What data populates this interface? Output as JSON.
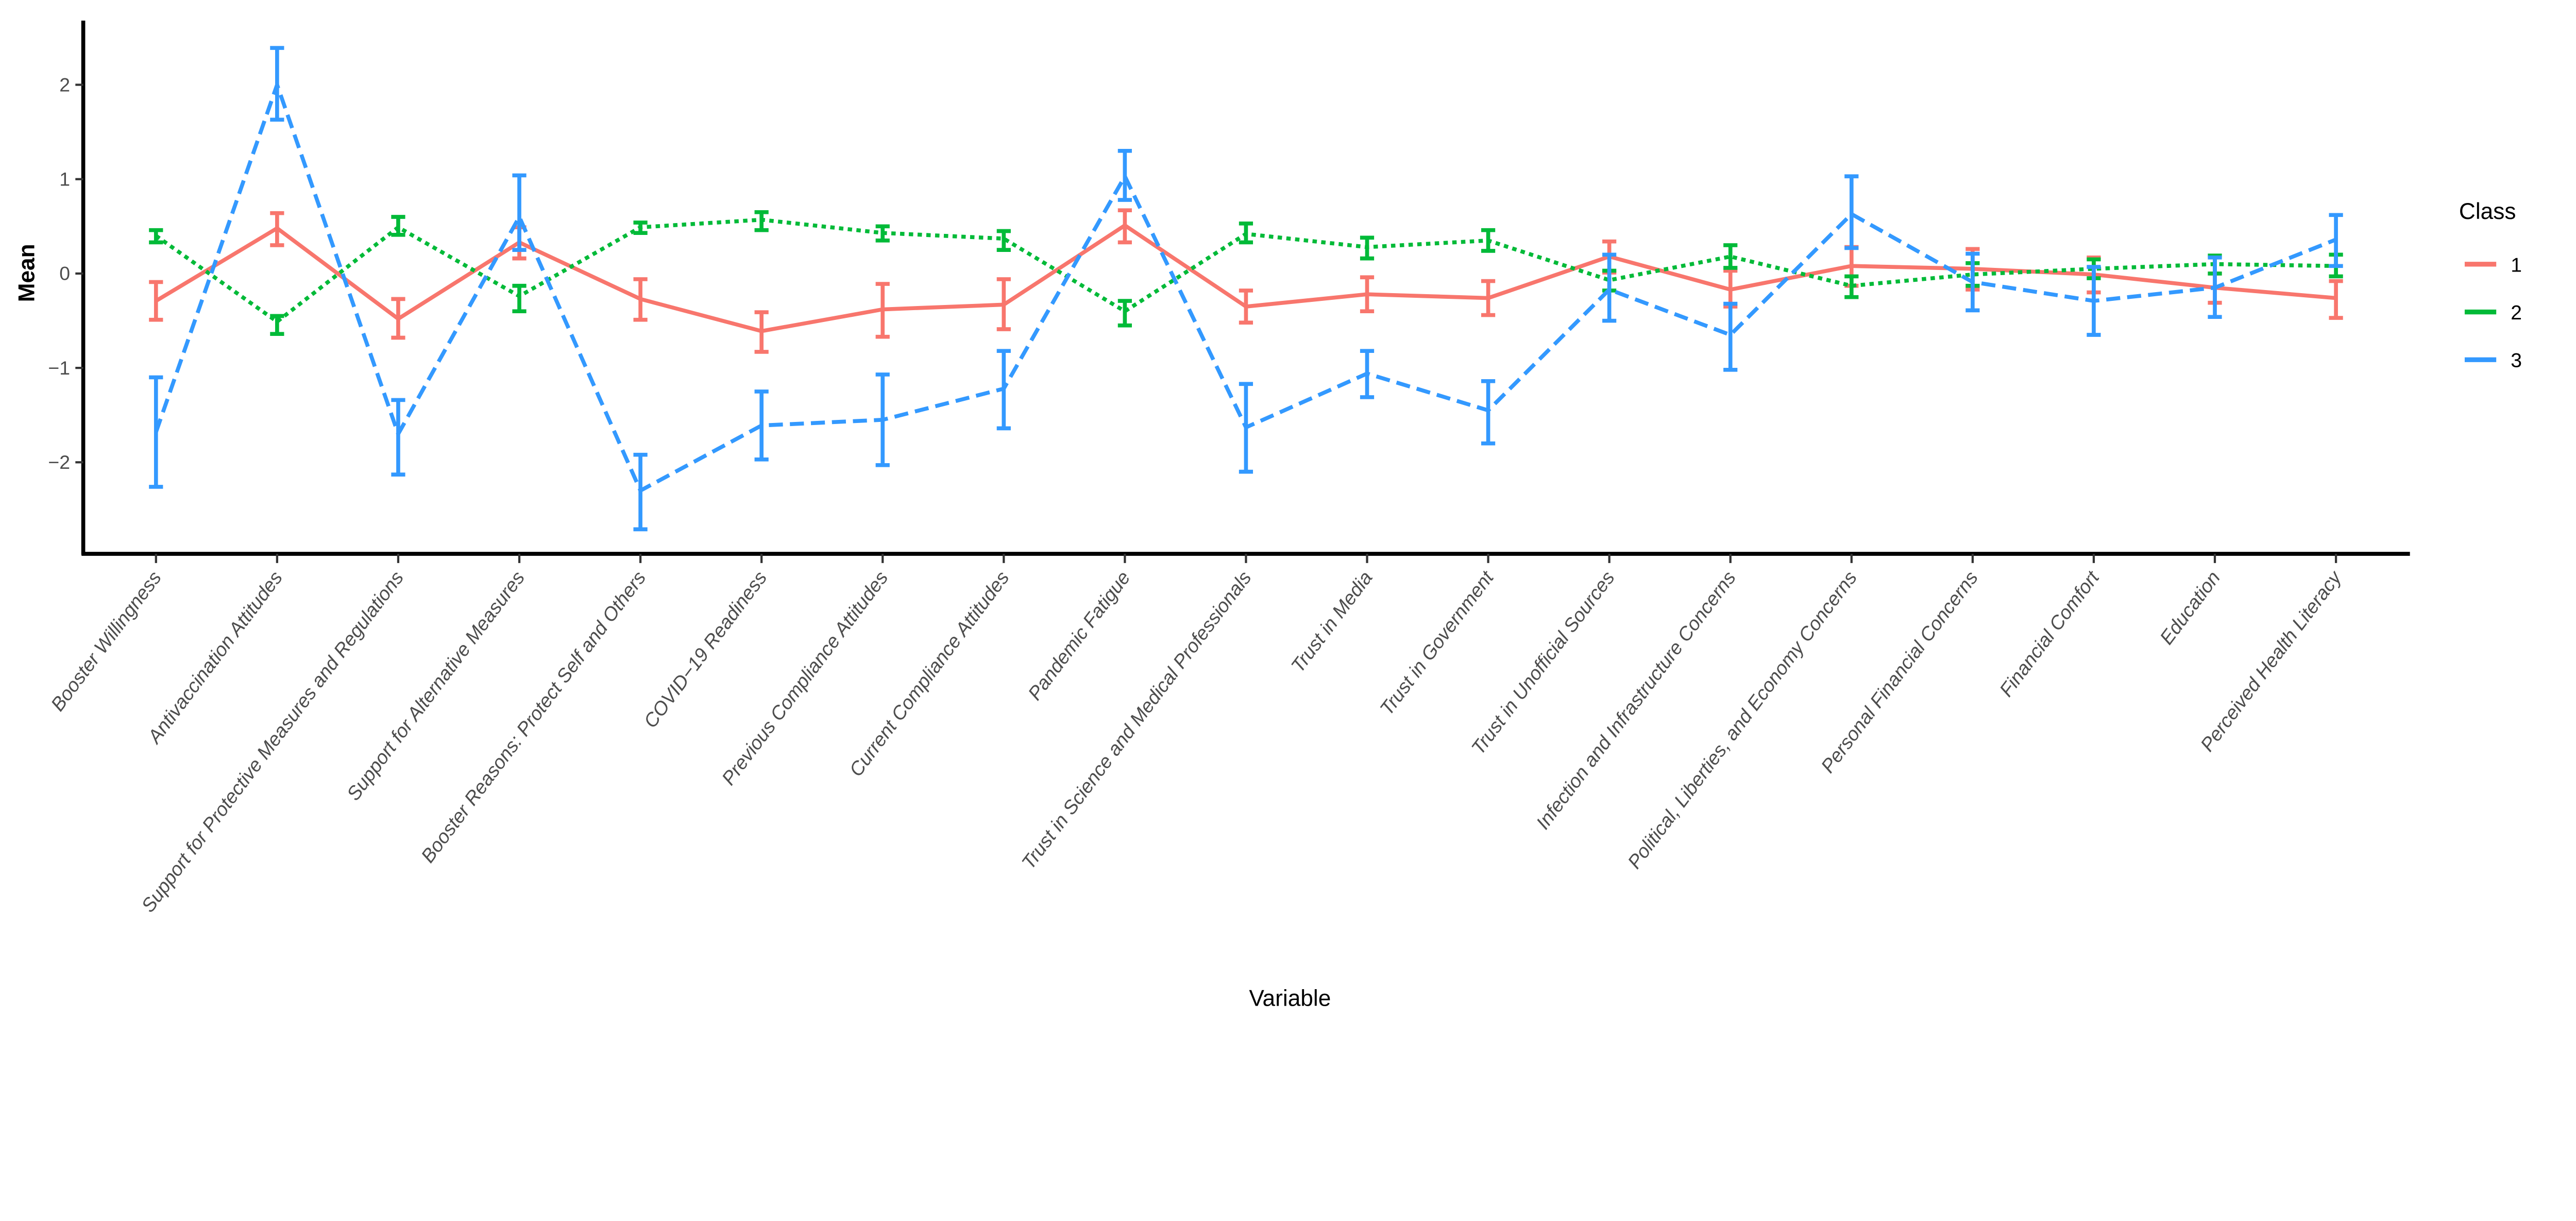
{
  "chart_data": {
    "type": "line",
    "xlabel": "Variable",
    "ylabel": "Mean",
    "ylim": [
      -2.97,
      2.68
    ],
    "yticks": [
      -2,
      -1,
      0,
      1,
      2
    ],
    "grid": false,
    "legend": {
      "title": "Class",
      "position": "right"
    },
    "categories": [
      "Booster Willingness",
      "Antivaccination Attitudes",
      "Support for Protective Measures and Regulations",
      "Support for Alternative Measures",
      "Booster Reasons: Protect Self and Others",
      "COVID−19 Readiness",
      "Previous Compliance Attitudes",
      "Current Compliance Attitudes",
      "Pandemic Fatigue",
      "Trust in Science and Medical Professionals",
      "Trust in Media",
      "Trust in Government",
      "Trust in Unofficial Sources",
      "Infection and Infrastructure Concerns",
      "Political, Liberties, and Economy Concerns",
      "Personal Financial Concerns",
      "Financial Comfort",
      "Education",
      "Perceived Health Literacy"
    ],
    "series": [
      {
        "name": "1",
        "color": "#F8766D",
        "linestyle": "solid",
        "values": [
          -0.29,
          0.48,
          -0.48,
          0.33,
          -0.27,
          -0.61,
          -0.38,
          -0.33,
          0.51,
          -0.35,
          -0.22,
          -0.26,
          0.18,
          -0.17,
          0.08,
          0.05,
          -0.01,
          -0.15,
          -0.26
        ],
        "lower": [
          -0.49,
          0.3,
          -0.68,
          0.16,
          -0.49,
          -0.83,
          -0.67,
          -0.59,
          0.33,
          -0.52,
          -0.4,
          -0.44,
          0.01,
          -0.35,
          -0.13,
          -0.17,
          -0.2,
          -0.31,
          -0.47
        ],
        "upper": [
          -0.09,
          0.64,
          -0.27,
          0.49,
          -0.06,
          -0.41,
          -0.11,
          -0.06,
          0.67,
          -0.18,
          -0.04,
          -0.08,
          0.34,
          0.03,
          0.28,
          0.26,
          0.17,
          0.0,
          -0.08
        ]
      },
      {
        "name": "2",
        "color": "#00BA38",
        "linestyle": "dotted",
        "values": [
          0.4,
          -0.51,
          0.49,
          -0.24,
          0.49,
          0.57,
          0.43,
          0.37,
          -0.4,
          0.42,
          0.28,
          0.35,
          -0.07,
          0.18,
          -0.13,
          -0.01,
          0.05,
          0.1,
          0.08
        ],
        "lower": [
          0.33,
          -0.64,
          0.41,
          -0.4,
          0.43,
          0.46,
          0.35,
          0.25,
          -0.55,
          0.33,
          0.16,
          0.24,
          -0.18,
          0.06,
          -0.25,
          -0.13,
          -0.05,
          0.0,
          -0.03
        ],
        "upper": [
          0.46,
          -0.45,
          0.6,
          -0.13,
          0.54,
          0.65,
          0.5,
          0.45,
          -0.29,
          0.53,
          0.38,
          0.46,
          0.03,
          0.3,
          -0.03,
          0.11,
          0.15,
          0.19,
          0.2
        ]
      },
      {
        "name": "3",
        "color": "#3399FF",
        "linestyle": "dashed",
        "values": [
          -1.68,
          2.0,
          -1.7,
          0.6,
          -2.3,
          -1.61,
          -1.55,
          -1.22,
          1.03,
          -1.63,
          -1.06,
          -1.45,
          -0.17,
          -0.65,
          0.63,
          -0.09,
          -0.29,
          -0.15,
          0.36
        ],
        "lower": [
          -2.26,
          1.63,
          -2.13,
          0.25,
          -2.71,
          -1.97,
          -2.03,
          -1.64,
          0.78,
          -2.1,
          -1.31,
          -1.8,
          -0.5,
          -1.02,
          0.27,
          -0.39,
          -0.65,
          -0.46,
          0.08
        ],
        "upper": [
          -1.1,
          2.39,
          -1.34,
          1.04,
          -1.92,
          -1.25,
          -1.07,
          -0.82,
          1.3,
          -1.17,
          -0.82,
          -1.14,
          0.2,
          -0.32,
          1.03,
          0.21,
          0.07,
          0.17,
          0.62
        ]
      }
    ]
  }
}
